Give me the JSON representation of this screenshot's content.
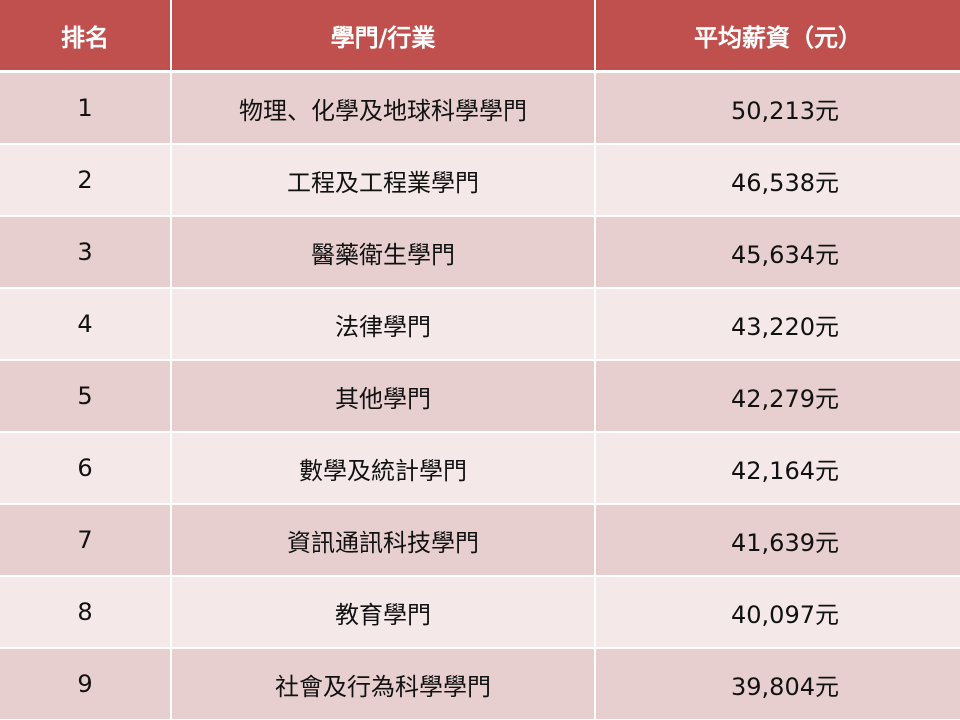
{
  "colors": {
    "header_bg": "#c0504d",
    "row_odd_bg": "#e8cfcf",
    "row_even_bg": "#f4e8e8",
    "divider": "#ffffff"
  },
  "header": {
    "rank": "排名",
    "field": "學門/行業",
    "salary": "平均薪資（元）"
  },
  "rows": [
    {
      "rank": "1",
      "field": "物理、化學及地球科學學門",
      "salary": "50,213元"
    },
    {
      "rank": "2",
      "field": "工程及工程業學門",
      "salary": "46,538元"
    },
    {
      "rank": "3",
      "field": "醫藥衛生學門",
      "salary": "45,634元"
    },
    {
      "rank": "4",
      "field": "法律學門",
      "salary": "43,220元"
    },
    {
      "rank": "5",
      "field": "其他學門",
      "salary": "42,279元"
    },
    {
      "rank": "6",
      "field": "數學及統計學門",
      "salary": "42,164元"
    },
    {
      "rank": "7",
      "field": "資訊通訊科技學門",
      "salary": "41,639元"
    },
    {
      "rank": "8",
      "field": "教育學門",
      "salary": "40,097元"
    },
    {
      "rank": "9",
      "field": "社會及行為科學學門",
      "salary": "39,804元"
    }
  ]
}
